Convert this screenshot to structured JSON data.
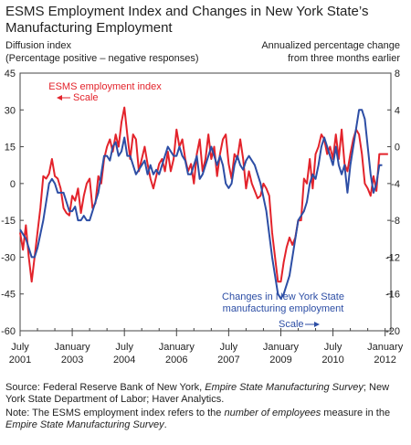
{
  "chart_data": {
    "type": "line",
    "title": "ESMS Employment Index and Changes in New York State’s Manufacturing Employment",
    "y_label": [
      "Diffusion index",
      "(Percentage positive – negative responses)"
    ],
    "y2_label": [
      "Annualized percentage change",
      "from three months earlier"
    ],
    "x": [
      "2001-07",
      "2001-08",
      "2001-09",
      "2001-10",
      "2001-11",
      "2001-12",
      "2002-01",
      "2002-02",
      "2002-03",
      "2002-04",
      "2002-05",
      "2002-06",
      "2002-07",
      "2002-08",
      "2002-09",
      "2002-10",
      "2002-11",
      "2002-12",
      "2003-01",
      "2003-02",
      "2003-03",
      "2003-04",
      "2003-05",
      "2003-06",
      "2003-07",
      "2003-08",
      "2003-09",
      "2003-10",
      "2003-11",
      "2003-12",
      "2004-01",
      "2004-02",
      "2004-03",
      "2004-04",
      "2004-05",
      "2004-06",
      "2004-07",
      "2004-08",
      "2004-09",
      "2004-10",
      "2004-11",
      "2004-12",
      "2005-01",
      "2005-02",
      "2005-03",
      "2005-04",
      "2005-05",
      "2005-06",
      "2005-07",
      "2005-08",
      "2005-09",
      "2005-10",
      "2005-11",
      "2005-12",
      "2006-01",
      "2006-02",
      "2006-03",
      "2006-04",
      "2006-05",
      "2006-06",
      "2006-07",
      "2006-08",
      "2006-09",
      "2006-10",
      "2006-11",
      "2006-12",
      "2007-01",
      "2007-02",
      "2007-03",
      "2007-04",
      "2007-05",
      "2007-06",
      "2007-07",
      "2007-08",
      "2007-09",
      "2007-10",
      "2007-11",
      "2007-12",
      "2008-01",
      "2008-02",
      "2008-03",
      "2008-04",
      "2008-05",
      "2008-06",
      "2008-07",
      "2008-08",
      "2008-09",
      "2008-10",
      "2008-11",
      "2008-12",
      "2009-01",
      "2009-02",
      "2009-03",
      "2009-04",
      "2009-05",
      "2009-06",
      "2009-07",
      "2009-08",
      "2009-09",
      "2009-10",
      "2009-11",
      "2009-12",
      "2010-01",
      "2010-02",
      "2010-03",
      "2010-04",
      "2010-05",
      "2010-06",
      "2010-07",
      "2010-08",
      "2010-09",
      "2010-10",
      "2010-11",
      "2010-12",
      "2011-01",
      "2011-02",
      "2011-03",
      "2011-04",
      "2011-05",
      "2011-06",
      "2011-07",
      "2011-08",
      "2011-09",
      "2011-10",
      "2011-11",
      "2011-12",
      "2012-01",
      "2012-02"
    ],
    "xlim": [
      "2001-07",
      "2012-03"
    ],
    "xticks": [
      {
        "value": "2001-07",
        "label": [
          "July",
          "2001"
        ]
      },
      {
        "value": "2003-01",
        "label": [
          "January",
          "2003"
        ]
      },
      {
        "value": "2004-07",
        "label": [
          "July",
          "2004"
        ]
      },
      {
        "value": "2006-01",
        "label": [
          "January",
          "2006"
        ]
      },
      {
        "value": "2007-07",
        "label": [
          "July",
          "2007"
        ]
      },
      {
        "value": "2009-01",
        "label": [
          "January",
          "2009"
        ]
      },
      {
        "value": "2010-07",
        "label": [
          "July",
          "2010"
        ]
      },
      {
        "value": "2012-01",
        "label": [
          "January",
          "2012"
        ]
      }
    ],
    "ylim": [
      -60,
      45
    ],
    "yticks": [
      -60,
      -45,
      -30,
      -15,
      0,
      15,
      30,
      45
    ],
    "y2lim": [
      -20,
      8
    ],
    "y2ticks": [
      -20,
      -16,
      -12,
      -8,
      -4,
      0,
      4,
      8
    ],
    "series": [
      {
        "name": "ESMS employment index",
        "color": "#e3232b",
        "values": [
          -20,
          -27,
          -17,
          -30,
          -40,
          -30,
          -20,
          -10,
          3,
          2,
          4,
          10,
          3,
          2,
          -2,
          -10,
          -12,
          -13,
          -5,
          -7,
          -2,
          -12,
          -5,
          0,
          2,
          -10,
          -8,
          3,
          0,
          10,
          15,
          18,
          13,
          20,
          15,
          25,
          31,
          20,
          10,
          20,
          18,
          5,
          10,
          15,
          8,
          2,
          -2,
          3,
          8,
          10,
          5,
          13,
          5,
          10,
          22,
          15,
          18,
          10,
          5,
          8,
          0,
          12,
          18,
          5,
          10,
          20,
          10,
          15,
          3,
          12,
          18,
          20,
          8,
          2,
          12,
          10,
          18,
          10,
          -2,
          5,
          0,
          -3,
          -6,
          -5,
          0,
          -2,
          -5,
          -20,
          -30,
          -40,
          -40,
          -32,
          -26,
          -22,
          -25,
          -22,
          -15,
          -15,
          2,
          0,
          10,
          -2,
          12,
          15,
          20,
          18,
          12,
          15,
          10,
          20,
          10,
          22,
          8,
          5,
          12,
          18,
          22,
          20,
          12,
          0,
          -2,
          -5,
          3,
          -3,
          12,
          12,
          12,
          12
        ]
      },
      {
        "name": "Changes in New York State manufacturing employment",
        "color": "#2d4ea5",
        "axis": "y2",
        "values": [
          -9,
          -9.5,
          -10,
          -11,
          -12,
          -12,
          -11,
          -9.5,
          -8,
          -6,
          -4,
          -3.5,
          -4,
          -5,
          -5,
          -5,
          -6,
          -7,
          -7,
          -6.5,
          -8,
          -8,
          -7.5,
          -8,
          -8,
          -7,
          -6,
          -5,
          -3,
          -1,
          -1,
          -1.5,
          0,
          0.5,
          -1,
          -0.5,
          1,
          -1,
          -1,
          -2,
          -3,
          -2.5,
          -2,
          -1.5,
          -3,
          -2,
          -3,
          -2.5,
          -3,
          -2,
          -1,
          0,
          -0.5,
          -1,
          -1,
          0,
          -1,
          -1.5,
          -3,
          -3,
          -2,
          -1,
          -3.5,
          -3,
          -2,
          -1,
          0,
          -1,
          -2,
          -1,
          -2,
          -4,
          -4.5,
          -4,
          -2,
          -1,
          -2,
          -2.5,
          -1.5,
          -1,
          -1.5,
          -2,
          -3,
          -4,
          -5.5,
          -7,
          -9.5,
          -12,
          -14,
          -16,
          -16.5,
          -16,
          -15,
          -14,
          -12,
          -10,
          -8,
          -7.5,
          -7,
          -6,
          -4,
          -3,
          -3.5,
          -2,
          0,
          1,
          0,
          -1,
          -2,
          0,
          -2,
          -3,
          -2,
          -5,
          -2,
          0,
          2,
          4,
          4,
          3,
          0,
          -3,
          -5,
          -4,
          -2,
          -2,
          null,
          null
        ]
      }
    ],
    "annotations": [
      "Scale",
      "Scale"
    ]
  },
  "notes": [
    [
      {
        "text": "Source: Federal Reserve Bank of New York, "
      },
      {
        "text": "Empire State Manufacturing Survey",
        "italic": true
      },
      {
        "text": "; New York State Department of Labor; Haver Analytics."
      }
    ],
    [
      {
        "text": "Note: The ESMS employment index refers to the "
      },
      {
        "text": "number of employees",
        "italic": true
      },
      {
        "text": " measure in the "
      },
      {
        "text": "Empire State Manufacturing Survey",
        "italic": true
      },
      {
        "text": "."
      }
    ]
  ]
}
